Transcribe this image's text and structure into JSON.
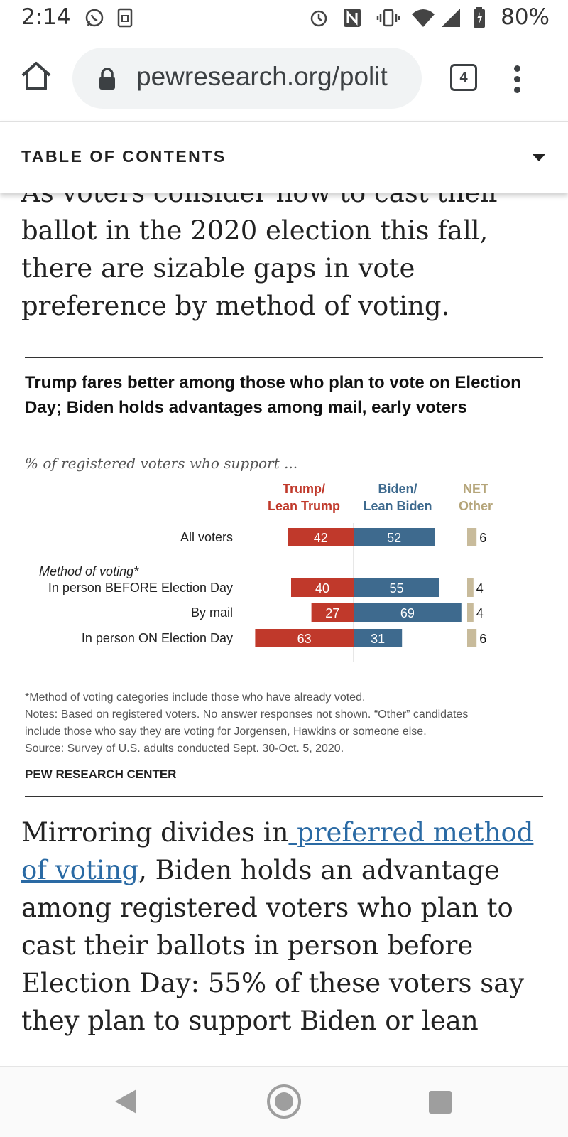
{
  "status_bar": {
    "time": "2:14",
    "battery": "80%",
    "icons": [
      "whatsapp-icon",
      "screenshot-icon",
      "alarm-icon",
      "nfc-icon",
      "vibrate-icon",
      "wifi-icon",
      "signal-icon",
      "battery-icon"
    ]
  },
  "browser": {
    "url": "pewresearch.org/polit",
    "tab_count": "4"
  },
  "toc": {
    "label": "TABLE OF CONTENTS"
  },
  "article": {
    "para1_cut": "As voters consider how to cast their",
    "para1_lines": [
      "ballot in the 2020 election this fall,",
      "there are sizable gaps in vote",
      "preference by method of voting."
    ],
    "para2_before": "Mirroring divides in",
    "para2_link": " preferred method of voting",
    "para2_after": ", Biden holds an advantage among registered voters who plan to cast their ballots in person before Election Day: 55% of these voters say they plan to support Biden or lean"
  },
  "chart": {
    "title": "Trump fares better among those who plan to vote on Election Day; Biden holds advantages among mail, early voters",
    "subtitle": "% of registered voters who support ...",
    "notes": [
      "*Method of voting categories include those who have already voted.",
      "Notes: Based on registered voters. No answer responses not shown. “Other” candidates",
      "include those who say they are voting for Jorgensen, Hawkins or someone else.",
      "Source: Survey of U.S. adults conducted Sept. 30-Oct. 5, 2020."
    ],
    "source_label": "PEW RESEARCH CENTER"
  },
  "chart_data": {
    "type": "bar",
    "title": "Trump fares better among those who plan to vote on Election Day; Biden holds advantages among mail, early voters",
    "subtitle": "% of registered voters who support ...",
    "group_label": "Method of voting*",
    "categories": [
      "All voters",
      "In person BEFORE Election Day",
      "By mail",
      "In person ON Election Day"
    ],
    "series": [
      {
        "name": "Trump/ Lean Trump",
        "values": [
          42,
          40,
          27,
          63
        ],
        "color": "#c0392b"
      },
      {
        "name": "Biden/ Lean Biden",
        "values": [
          52,
          55,
          69,
          31
        ],
        "color": "#3e6a8e"
      },
      {
        "name": "NET Other",
        "values": [
          6,
          4,
          4,
          6
        ],
        "color": "#c8bb9b"
      }
    ],
    "legend": [
      {
        "line1": "Trump/",
        "line2": "Lean Trump",
        "color": "#c0392b"
      },
      {
        "line1": "Biden/",
        "line2": "Lean Biden",
        "color": "#3e6a8e"
      },
      {
        "line1": "NET",
        "line2": "Other",
        "color": "#b5a57a"
      }
    ]
  }
}
